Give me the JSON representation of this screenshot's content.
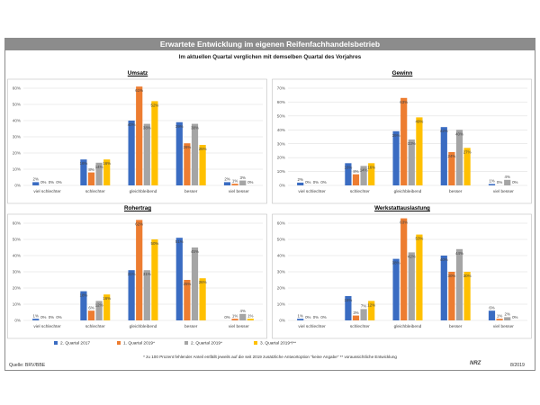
{
  "header": {
    "title": "Erwartete Entwicklung im eigenen Reifenfachhandelsbetrieb",
    "subtitle": "Im aktuellen Quartal verglichen mit demselben Quartal des Vorjahres"
  },
  "colors": {
    "series": [
      "#3a6cc2",
      "#ed7d31",
      "#a5a5a5",
      "#ffc000"
    ],
    "banner": "#8c8c8c",
    "grid": "#d9d9d9"
  },
  "legend": [
    "2. Quartal 2017",
    "1. Quartal 2019*",
    "2. Quartal 2019*",
    "3. Quartal 2019*/**"
  ],
  "footer": {
    "footnote": "* zu 100 Prozent fehlender Anteil entfällt jeweils auf die seit 2019 zusätzliche Antwortoption \"keine Angabe\"   ** voraussichtliche Entwicklung",
    "source": "Quelle: BRV/BBE",
    "logo": "NRZ",
    "date": "8/2019"
  },
  "chart_data": [
    {
      "type": "bar",
      "title": "Umsatz",
      "categories": [
        "viel schlechter",
        "schlechter",
        "gleichbleibend",
        "besser",
        "viel besser"
      ],
      "ylim": [
        0,
        60
      ],
      "yticks": [
        "0%",
        "10%",
        "20%",
        "30%",
        "40%",
        "50%",
        "60%"
      ],
      "series": [
        {
          "name": "2. Quartal 2017",
          "values": [
            2,
            16,
            40,
            39,
            2
          ]
        },
        {
          "name": "1. Quartal 2019*",
          "values": [
            0,
            8,
            61,
            26,
            1
          ]
        },
        {
          "name": "2. Quartal 2019*",
          "values": [
            0,
            14,
            38,
            38,
            3
          ]
        },
        {
          "name": "3. Quartal 2019*/**",
          "values": [
            0,
            16,
            52,
            25,
            0
          ]
        }
      ],
      "labels": [
        [
          "2%",
          "16%",
          "40%",
          "39%",
          "2%"
        ],
        [
          "0%",
          "8%",
          "61%",
          "26%",
          "1%"
        ],
        [
          "0%",
          "14%",
          "38%",
          "38%",
          "3%"
        ],
        [
          "0%",
          "16%",
          "52%",
          "25%",
          "0%"
        ]
      ]
    },
    {
      "type": "bar",
      "title": "Gewinn",
      "categories": [
        "viel schlechter",
        "schlechter",
        "gleichbleibend",
        "besser",
        "viel besser"
      ],
      "ylim": [
        0,
        70
      ],
      "yticks": [
        "0%",
        "10%",
        "20%",
        "30%",
        "40%",
        "50%",
        "60%",
        "70%"
      ],
      "series": [
        {
          "name": "2. Quartal 2017",
          "values": [
            2,
            16,
            39,
            42,
            1
          ]
        },
        {
          "name": "1. Quartal 2019*",
          "values": [
            0,
            8,
            63,
            24,
            0
          ]
        },
        {
          "name": "2. Quartal 2019*",
          "values": [
            0,
            14,
            33,
            40,
            4
          ]
        },
        {
          "name": "3. Quartal 2019*/**",
          "values": [
            0,
            16,
            49,
            27,
            0
          ]
        }
      ],
      "labels": [
        [
          "2%",
          "16%",
          "39%",
          "42%",
          "1%"
        ],
        [
          "0%",
          "8%",
          "63%",
          "24%",
          "0%"
        ],
        [
          "0%",
          "14%",
          "33%",
          "40%",
          "4%"
        ],
        [
          "0%",
          "16%",
          "49%",
          "27%",
          "0%"
        ]
      ]
    },
    {
      "type": "bar",
      "title": "Rohertrag",
      "categories": [
        "viel schlechter",
        "schlechter",
        "gleichbleibend",
        "besser",
        "viel besser"
      ],
      "ylim": [
        0,
        60
      ],
      "yticks": [
        "0%",
        "10%",
        "20%",
        "30%",
        "40%",
        "50%",
        "60%"
      ],
      "series": [
        {
          "name": "2. Quartal 2017",
          "values": [
            1,
            18,
            31,
            51,
            0
          ]
        },
        {
          "name": "1. Quartal 2019*",
          "values": [
            0,
            6,
            62,
            25,
            1
          ]
        },
        {
          "name": "2. Quartal 2019*",
          "values": [
            0,
            12,
            31,
            45,
            4
          ]
        },
        {
          "name": "3. Quartal 2019*/**",
          "values": [
            0,
            16,
            50,
            26,
            1
          ]
        }
      ],
      "labels": [
        [
          "1%",
          "18%",
          "31%",
          "51%",
          "0%"
        ],
        [
          "0%",
          "6%",
          "62%",
          "25%",
          "1%"
        ],
        [
          "0%",
          "12%",
          "31%",
          "45%",
          "4%"
        ],
        [
          "0%",
          "16%",
          "50%",
          "26%",
          "1%"
        ]
      ]
    },
    {
      "type": "bar",
      "title": "Werkstattauslastung",
      "categories": [
        "viel schlechter",
        "schlechter",
        "gleichbleibend",
        "besser",
        "viel besser"
      ],
      "ylim": [
        0,
        60
      ],
      "yticks": [
        "0%",
        "10%",
        "20%",
        "30%",
        "40%",
        "50%",
        "60%"
      ],
      "series": [
        {
          "name": "2. Quartal 2017",
          "values": [
            1,
            15,
            38,
            40,
            6
          ]
        },
        {
          "name": "1. Quartal 2019*",
          "values": [
            0,
            3,
            63,
            30,
            1
          ]
        },
        {
          "name": "2. Quartal 2019*",
          "values": [
            0,
            7,
            42,
            44,
            2
          ]
        },
        {
          "name": "3. Quartal 2019*/**",
          "values": [
            0,
            12,
            53,
            30,
            0
          ]
        }
      ],
      "labels": [
        [
          "1%",
          "15%",
          "38%",
          "40%",
          "6%"
        ],
        [
          "0%",
          "3%",
          "63%",
          "30%",
          "1%"
        ],
        [
          "0%",
          "7%",
          "42%",
          "44%",
          "2%"
        ],
        [
          "0%",
          "12%",
          "53%",
          "30%",
          "0%"
        ]
      ]
    }
  ]
}
